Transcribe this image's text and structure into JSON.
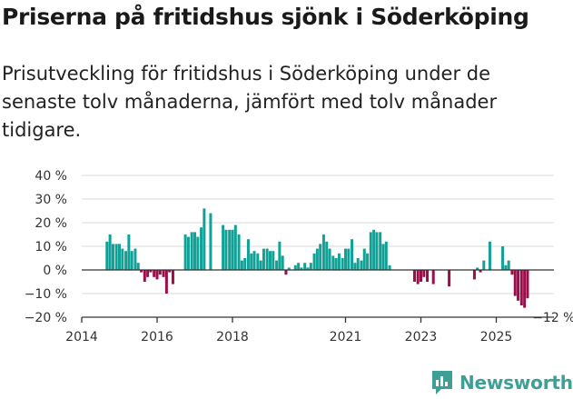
{
  "title": "Priserna på fritidshus sjönk i Söderköping",
  "subtitle": "Prisutveckling för fritidshus i Söderköping under de senaste tolv månaderna, jämfört med tolv månader tidigare.",
  "brand": "Newsworthy",
  "colors": {
    "positive": "#12a196",
    "negative": "#9a0e4a",
    "grid": "#d9d9d9",
    "axis": "#333333",
    "brand": "#3e9f95"
  },
  "chart_data": {
    "type": "bar",
    "ylim": [
      -20,
      40
    ],
    "yticks": [
      -20,
      -10,
      0,
      10,
      20,
      30,
      40
    ],
    "ytick_labels": [
      "−20 %",
      "−10 %",
      "0 %",
      "10 %",
      "20 %",
      "30 %",
      "40 %"
    ],
    "xlim": [
      2014,
      2026.5
    ],
    "xticks": [
      2014,
      2016,
      2018,
      2021,
      2023,
      2025
    ],
    "xtick_labels": [
      "2014",
      "2016",
      "2018",
      "2021",
      "2023",
      "2025"
    ],
    "annotation": {
      "label": "−12 %",
      "x": 2025.9,
      "y": -12
    },
    "series": [
      {
        "name": "Prisutveckling",
        "points": [
          {
            "x": 2014.67,
            "y": 12
          },
          {
            "x": 2014.75,
            "y": 15
          },
          {
            "x": 2014.83,
            "y": 11
          },
          {
            "x": 2014.92,
            "y": 11
          },
          {
            "x": 2015.0,
            "y": 11
          },
          {
            "x": 2015.08,
            "y": 9
          },
          {
            "x": 2015.17,
            "y": 8
          },
          {
            "x": 2015.25,
            "y": 15
          },
          {
            "x": 2015.33,
            "y": 8
          },
          {
            "x": 2015.42,
            "y": 9
          },
          {
            "x": 2015.5,
            "y": 3
          },
          {
            "x": 2015.58,
            "y": -1
          },
          {
            "x": 2015.67,
            "y": -5
          },
          {
            "x": 2015.75,
            "y": -3
          },
          {
            "x": 2015.83,
            "y": -1
          },
          {
            "x": 2015.92,
            "y": -3
          },
          {
            "x": 2016.0,
            "y": -4
          },
          {
            "x": 2016.08,
            "y": -2
          },
          {
            "x": 2016.17,
            "y": -3
          },
          {
            "x": 2016.25,
            "y": -10
          },
          {
            "x": 2016.33,
            "y": -1
          },
          {
            "x": 2016.42,
            "y": -6
          },
          {
            "x": 2016.75,
            "y": 15
          },
          {
            "x": 2016.83,
            "y": 14
          },
          {
            "x": 2016.92,
            "y": 16
          },
          {
            "x": 2017.0,
            "y": 16
          },
          {
            "x": 2017.08,
            "y": 14
          },
          {
            "x": 2017.17,
            "y": 18
          },
          {
            "x": 2017.25,
            "y": 26
          },
          {
            "x": 2017.42,
            "y": 24
          },
          {
            "x": 2017.75,
            "y": 19
          },
          {
            "x": 2017.83,
            "y": 17
          },
          {
            "x": 2017.92,
            "y": 17
          },
          {
            "x": 2018.0,
            "y": 17
          },
          {
            "x": 2018.08,
            "y": 19
          },
          {
            "x": 2018.17,
            "y": 15
          },
          {
            "x": 2018.25,
            "y": 4
          },
          {
            "x": 2018.33,
            "y": 5
          },
          {
            "x": 2018.42,
            "y": 13
          },
          {
            "x": 2018.5,
            "y": 7
          },
          {
            "x": 2018.58,
            "y": 8
          },
          {
            "x": 2018.67,
            "y": 7
          },
          {
            "x": 2018.75,
            "y": 4
          },
          {
            "x": 2018.83,
            "y": 9
          },
          {
            "x": 2018.92,
            "y": 9
          },
          {
            "x": 2019.0,
            "y": 8
          },
          {
            "x": 2019.08,
            "y": 8
          },
          {
            "x": 2019.17,
            "y": 4
          },
          {
            "x": 2019.25,
            "y": 12
          },
          {
            "x": 2019.33,
            "y": 6
          },
          {
            "x": 2019.42,
            "y": -2
          },
          {
            "x": 2019.5,
            "y": 1
          },
          {
            "x": 2019.67,
            "y": 2
          },
          {
            "x": 2019.75,
            "y": 3
          },
          {
            "x": 2019.83,
            "y": 1
          },
          {
            "x": 2019.92,
            "y": 3
          },
          {
            "x": 2020.0,
            "y": 1
          },
          {
            "x": 2020.08,
            "y": 3
          },
          {
            "x": 2020.17,
            "y": 7
          },
          {
            "x": 2020.25,
            "y": 9
          },
          {
            "x": 2020.33,
            "y": 11
          },
          {
            "x": 2020.42,
            "y": 15
          },
          {
            "x": 2020.5,
            "y": 12
          },
          {
            "x": 2020.58,
            "y": 9
          },
          {
            "x": 2020.67,
            "y": 6
          },
          {
            "x": 2020.75,
            "y": 5
          },
          {
            "x": 2020.83,
            "y": 7
          },
          {
            "x": 2020.92,
            "y": 5
          },
          {
            "x": 2021.0,
            "y": 9
          },
          {
            "x": 2021.08,
            "y": 9
          },
          {
            "x": 2021.17,
            "y": 13
          },
          {
            "x": 2021.25,
            "y": 3
          },
          {
            "x": 2021.33,
            "y": 5
          },
          {
            "x": 2021.42,
            "y": 4
          },
          {
            "x": 2021.5,
            "y": 9
          },
          {
            "x": 2021.58,
            "y": 7
          },
          {
            "x": 2021.67,
            "y": 16
          },
          {
            "x": 2021.75,
            "y": 17
          },
          {
            "x": 2021.83,
            "y": 16
          },
          {
            "x": 2021.92,
            "y": 16
          },
          {
            "x": 2022.0,
            "y": 11
          },
          {
            "x": 2022.08,
            "y": 12
          },
          {
            "x": 2022.17,
            "y": 2
          },
          {
            "x": 2022.83,
            "y": -5
          },
          {
            "x": 2022.92,
            "y": -6
          },
          {
            "x": 2023.0,
            "y": -5
          },
          {
            "x": 2023.08,
            "y": -3
          },
          {
            "x": 2023.17,
            "y": -5
          },
          {
            "x": 2023.33,
            "y": -6
          },
          {
            "x": 2023.75,
            "y": -7
          },
          {
            "x": 2024.42,
            "y": -4
          },
          {
            "x": 2024.5,
            "y": 1
          },
          {
            "x": 2024.58,
            "y": -1
          },
          {
            "x": 2024.67,
            "y": 4
          },
          {
            "x": 2024.83,
            "y": 12
          },
          {
            "x": 2025.17,
            "y": 10
          },
          {
            "x": 2025.25,
            "y": 2
          },
          {
            "x": 2025.33,
            "y": 4
          },
          {
            "x": 2025.42,
            "y": -2
          },
          {
            "x": 2025.5,
            "y": -11
          },
          {
            "x": 2025.58,
            "y": -13
          },
          {
            "x": 2025.67,
            "y": -15
          },
          {
            "x": 2025.75,
            "y": -16
          },
          {
            "x": 2025.83,
            "y": -12
          }
        ]
      }
    ]
  }
}
